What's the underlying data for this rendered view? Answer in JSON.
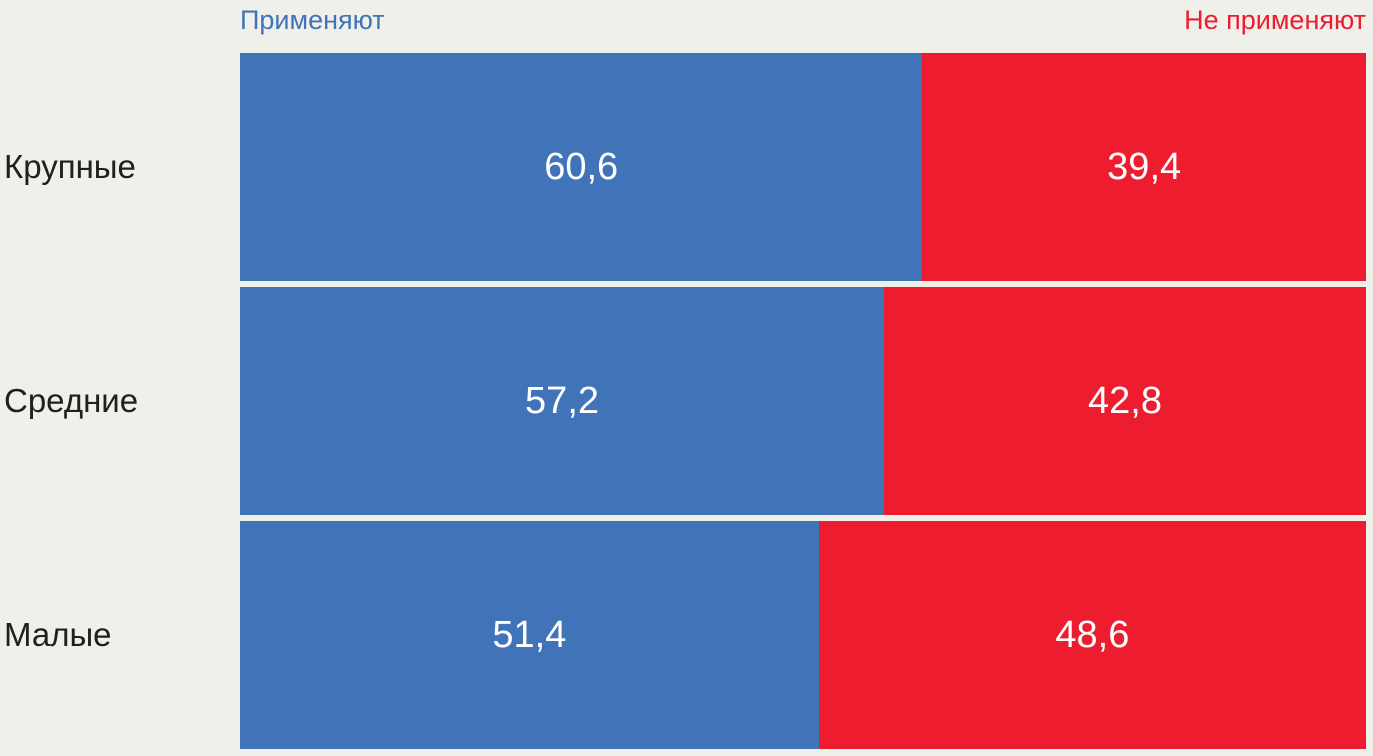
{
  "colors": {
    "apply": "#4173B8",
    "not_apply": "#ED1C2E",
    "background": "#EFF0EA",
    "category_text": "#21201D",
    "value_text": "#FFFFFF"
  },
  "legend": {
    "apply_label": "Применяют",
    "not_apply_label": "Не применяют"
  },
  "chart_data": {
    "type": "bar",
    "orientation": "horizontal",
    "stacked": true,
    "stack_total": 100,
    "title": "",
    "xlabel": "",
    "ylabel": "",
    "xlim": [
      0,
      100
    ],
    "grid": false,
    "legend_position": "top",
    "categories": [
      "Крупные",
      "Средние",
      "Малые"
    ],
    "series": [
      {
        "name": "Применяют",
        "color": "#4173B8",
        "values": [
          60.6,
          57.2,
          51.4
        ]
      },
      {
        "name": "Не применяют",
        "color": "#ED1C2E",
        "values": [
          39.4,
          42.8,
          48.6
        ]
      }
    ],
    "rows": [
      {
        "category": "Крупные",
        "apply_pct": 60.6,
        "not_apply_pct": 39.4,
        "apply_label": "60,6",
        "not_apply_label": "39,4"
      },
      {
        "category": "Средние",
        "apply_pct": 57.2,
        "not_apply_pct": 42.8,
        "apply_label": "57,2",
        "not_apply_label": "42,8"
      },
      {
        "category": "Малые",
        "apply_pct": 51.4,
        "not_apply_pct": 48.6,
        "apply_label": "51,4",
        "not_apply_label": "48,6"
      }
    ]
  }
}
